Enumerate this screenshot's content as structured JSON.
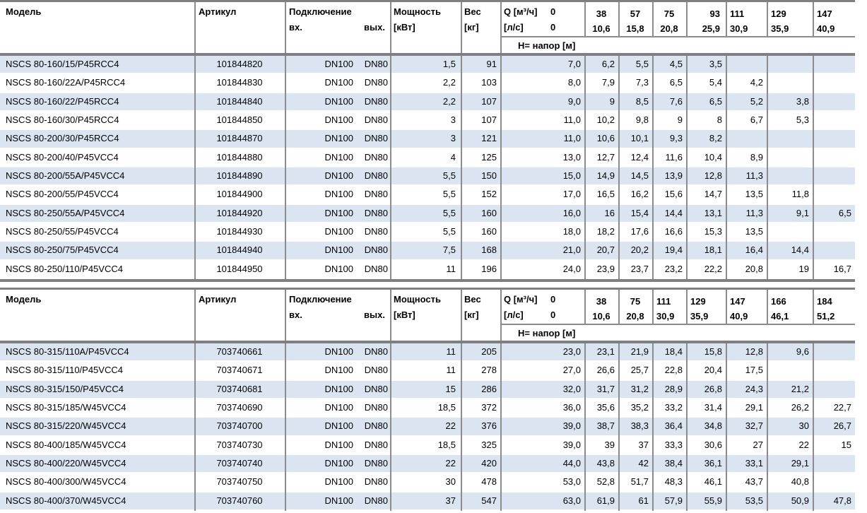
{
  "table1": {
    "headers": {
      "model": "Модель",
      "article": "Артикул",
      "connection": "Подключение",
      "conn_in": "вх.",
      "conn_out": "вых.",
      "power_l1": "Мощность",
      "power_l2": "[кВт]",
      "weight_l1": "Вес",
      "weight_l2": "[кг]",
      "q_row1_label": "Q [м³/ч]",
      "q_row1_zero": "0",
      "q_row2_label": "[л/с]",
      "q_row2_zero": "0",
      "head_label": "H= напор [м]",
      "flow_cols": [
        {
          "m3h": "38",
          "ls": "10,6"
        },
        {
          "m3h": "57",
          "ls": "15,8"
        },
        {
          "m3h": "75",
          "ls": "20,8"
        },
        {
          "m3h": "93",
          "ls": "25,9"
        },
        {
          "m3h": "111",
          "ls": "30,9"
        },
        {
          "m3h": "129",
          "ls": "35,9"
        },
        {
          "m3h": "147",
          "ls": "40,9"
        }
      ]
    },
    "rows": [
      {
        "model": "NSCS 80-160/15/P45RCC4",
        "article": "101844820",
        "dn_in": "DN100",
        "dn_out": "DN80",
        "power": "1,5",
        "weight": "91",
        "heads": [
          "7,0",
          "6,2",
          "5,5",
          "4,5",
          "3,5",
          "",
          "",
          ""
        ]
      },
      {
        "model": "NSCS 80-160/22A/P45RCC4",
        "article": "101844830",
        "dn_in": "DN100",
        "dn_out": "DN80",
        "power": "2,2",
        "weight": "103",
        "heads": [
          "8,0",
          "7,9",
          "7,3",
          "6,5",
          "5,4",
          "4,2",
          "",
          ""
        ]
      },
      {
        "model": "NSCS 80-160/22/P45RCC4",
        "article": "101844840",
        "dn_in": "DN100",
        "dn_out": "DN80",
        "power": "2,2",
        "weight": "107",
        "heads": [
          "9,0",
          "9",
          "8,5",
          "7,6",
          "6,5",
          "5,2",
          "3,8",
          ""
        ]
      },
      {
        "model": "NSCS 80-160/30/P45RCC4",
        "article": "101844850",
        "dn_in": "DN100",
        "dn_out": "DN80",
        "power": "3",
        "weight": "107",
        "heads": [
          "11,0",
          "10,2",
          "9,8",
          "9",
          "8",
          "6,7",
          "5,3",
          ""
        ]
      },
      {
        "model": "NSCS 80-200/30/P45RCC4",
        "article": "101844870",
        "dn_in": "DN100",
        "dn_out": "DN80",
        "power": "3",
        "weight": "121",
        "heads": [
          "11,0",
          "10,6",
          "10,1",
          "9,3",
          "8,2",
          "",
          "",
          ""
        ]
      },
      {
        "model": "NSCS 80-200/40/P45VCC4",
        "article": "101844880",
        "dn_in": "DN100",
        "dn_out": "DN80",
        "power": "4",
        "weight": "125",
        "heads": [
          "13,0",
          "12,7",
          "12,4",
          "11,6",
          "10,4",
          "8,9",
          "",
          ""
        ]
      },
      {
        "model": "NSCS 80-200/55A/P45VCC4",
        "article": "101844890",
        "dn_in": "DN100",
        "dn_out": "DN80",
        "power": "5,5",
        "weight": "150",
        "heads": [
          "15,0",
          "14,9",
          "14,5",
          "13,9",
          "12,8",
          "11,3",
          "",
          ""
        ]
      },
      {
        "model": "NSCS 80-200/55/P45VCC4",
        "article": "101844900",
        "dn_in": "DN100",
        "dn_out": "DN80",
        "power": "5,5",
        "weight": "152",
        "heads": [
          "17,0",
          "16,5",
          "16,2",
          "15,6",
          "14,7",
          "13,5",
          "11,8",
          ""
        ]
      },
      {
        "model": "NSCS 80-250/55A/P45VCC4",
        "article": "101844920",
        "dn_in": "DN100",
        "dn_out": "DN80",
        "power": "5,5",
        "weight": "160",
        "heads": [
          "16,0",
          "16",
          "15,4",
          "14,4",
          "13,1",
          "11,3",
          "9,1",
          "6,5"
        ]
      },
      {
        "model": "NSCS 80-250/55/P45VCC4",
        "article": "101844930",
        "dn_in": "DN100",
        "dn_out": "DN80",
        "power": "5,5",
        "weight": "160",
        "heads": [
          "18,0",
          "18,2",
          "17,6",
          "16,6",
          "15,3",
          "13,5",
          "",
          ""
        ]
      },
      {
        "model": "NSCS 80-250/75/P45VCC4",
        "article": "101844940",
        "dn_in": "DN100",
        "dn_out": "DN80",
        "power": "7,5",
        "weight": "168",
        "heads": [
          "21,0",
          "20,7",
          "20,2",
          "19,4",
          "18,1",
          "16,4",
          "14,4",
          ""
        ]
      },
      {
        "model": "NSCS 80-250/110/P45VCC4",
        "article": "101844950",
        "dn_in": "DN100",
        "dn_out": "DN80",
        "power": "11",
        "weight": "196",
        "heads": [
          "24,0",
          "23,9",
          "23,7",
          "23,2",
          "22,2",
          "20,8",
          "19",
          "16,7"
        ]
      }
    ]
  },
  "table2": {
    "headers": {
      "model": "Модель",
      "article": "Артикул",
      "connection": "Подключение",
      "conn_in": "вх.",
      "conn_out": "вых.",
      "power_l1": "Мощность",
      "power_l2": "[кВт]",
      "weight_l1": "Вес",
      "weight_l2": "[кг]",
      "q_row1_label": "Q [м³/ч]",
      "q_row1_zero": "0",
      "q_row2_label": "[л/с]",
      "q_row2_zero": "0",
      "head_label": "H= напор [м]",
      "flow_cols": [
        {
          "m3h": "38",
          "ls": "10,6"
        },
        {
          "m3h": "75",
          "ls": "20,8"
        },
        {
          "m3h": "111",
          "ls": "30,9"
        },
        {
          "m3h": "129",
          "ls": "35,9"
        },
        {
          "m3h": "147",
          "ls": "40,9"
        },
        {
          "m3h": "166",
          "ls": "46,1"
        },
        {
          "m3h": "184",
          "ls": "51,2"
        }
      ]
    },
    "rows": [
      {
        "model": "NSCS 80-315/110A/P45VCC4",
        "article": "703740661",
        "dn_in": "DN100",
        "dn_out": "DN80",
        "power": "11",
        "weight": "205",
        "heads": [
          "23,0",
          "23,1",
          "21,9",
          "18,4",
          "15,8",
          "12,8",
          "9,6",
          ""
        ]
      },
      {
        "model": "NSCS 80-315/110/P45VCC4",
        "article": "703740671",
        "dn_in": "DN100",
        "dn_out": "DN80",
        "power": "11",
        "weight": "278",
        "heads": [
          "27,0",
          "26,6",
          "25,7",
          "22,8",
          "20,4",
          "17,5",
          "",
          ""
        ]
      },
      {
        "model": "NSCS 80-315/150/P45VCC4",
        "article": "703740681",
        "dn_in": "DN100",
        "dn_out": "DN80",
        "power": "15",
        "weight": "286",
        "heads": [
          "32,0",
          "31,7",
          "31,2",
          "28,9",
          "26,8",
          "24,3",
          "21,2",
          ""
        ]
      },
      {
        "model": "NSCS 80-315/185/W45VCC4",
        "article": "703740690",
        "dn_in": "DN100",
        "dn_out": "DN80",
        "power": "18,5",
        "weight": "372",
        "heads": [
          "36,0",
          "35,6",
          "35,2",
          "33,2",
          "31,4",
          "29,1",
          "26,2",
          "22,7"
        ]
      },
      {
        "model": "NSCS 80-315/220/W45VCC4",
        "article": "703740700",
        "dn_in": "DN100",
        "dn_out": "DN80",
        "power": "22",
        "weight": "376",
        "heads": [
          "39,0",
          "38,7",
          "38,3",
          "36,4",
          "34,8",
          "32,7",
          "30",
          "26,7"
        ]
      },
      {
        "model": "NSCS 80-400/185/W45VCC4",
        "article": "703740730",
        "dn_in": "DN100",
        "dn_out": "DN80",
        "power": "18,5",
        "weight": "325",
        "heads": [
          "39,0",
          "39",
          "37",
          "33,3",
          "30,6",
          "27",
          "22",
          "15"
        ]
      },
      {
        "model": "NSCS 80-400/220/W45VCC4",
        "article": "703740740",
        "dn_in": "DN100",
        "dn_out": "DN80",
        "power": "22",
        "weight": "420",
        "heads": [
          "44,0",
          "43,8",
          "42",
          "38,4",
          "36,1",
          "33,1",
          "29,1",
          ""
        ]
      },
      {
        "model": "NSCS 80-400/300/W45VCC4",
        "article": "703740750",
        "dn_in": "DN100",
        "dn_out": "DN80",
        "power": "30",
        "weight": "478",
        "heads": [
          "53,0",
          "52,8",
          "51,7",
          "48,3",
          "46,1",
          "43,7",
          "40,8",
          ""
        ]
      },
      {
        "model": "NSCS 80-400/370/W45VCC4",
        "article": "703740760",
        "dn_in": "DN100",
        "dn_out": "DN80",
        "power": "37",
        "weight": "547",
        "heads": [
          "63,0",
          "61,9",
          "61",
          "57,9",
          "55,9",
          "53,5",
          "50,9",
          "47,8"
        ]
      }
    ]
  }
}
